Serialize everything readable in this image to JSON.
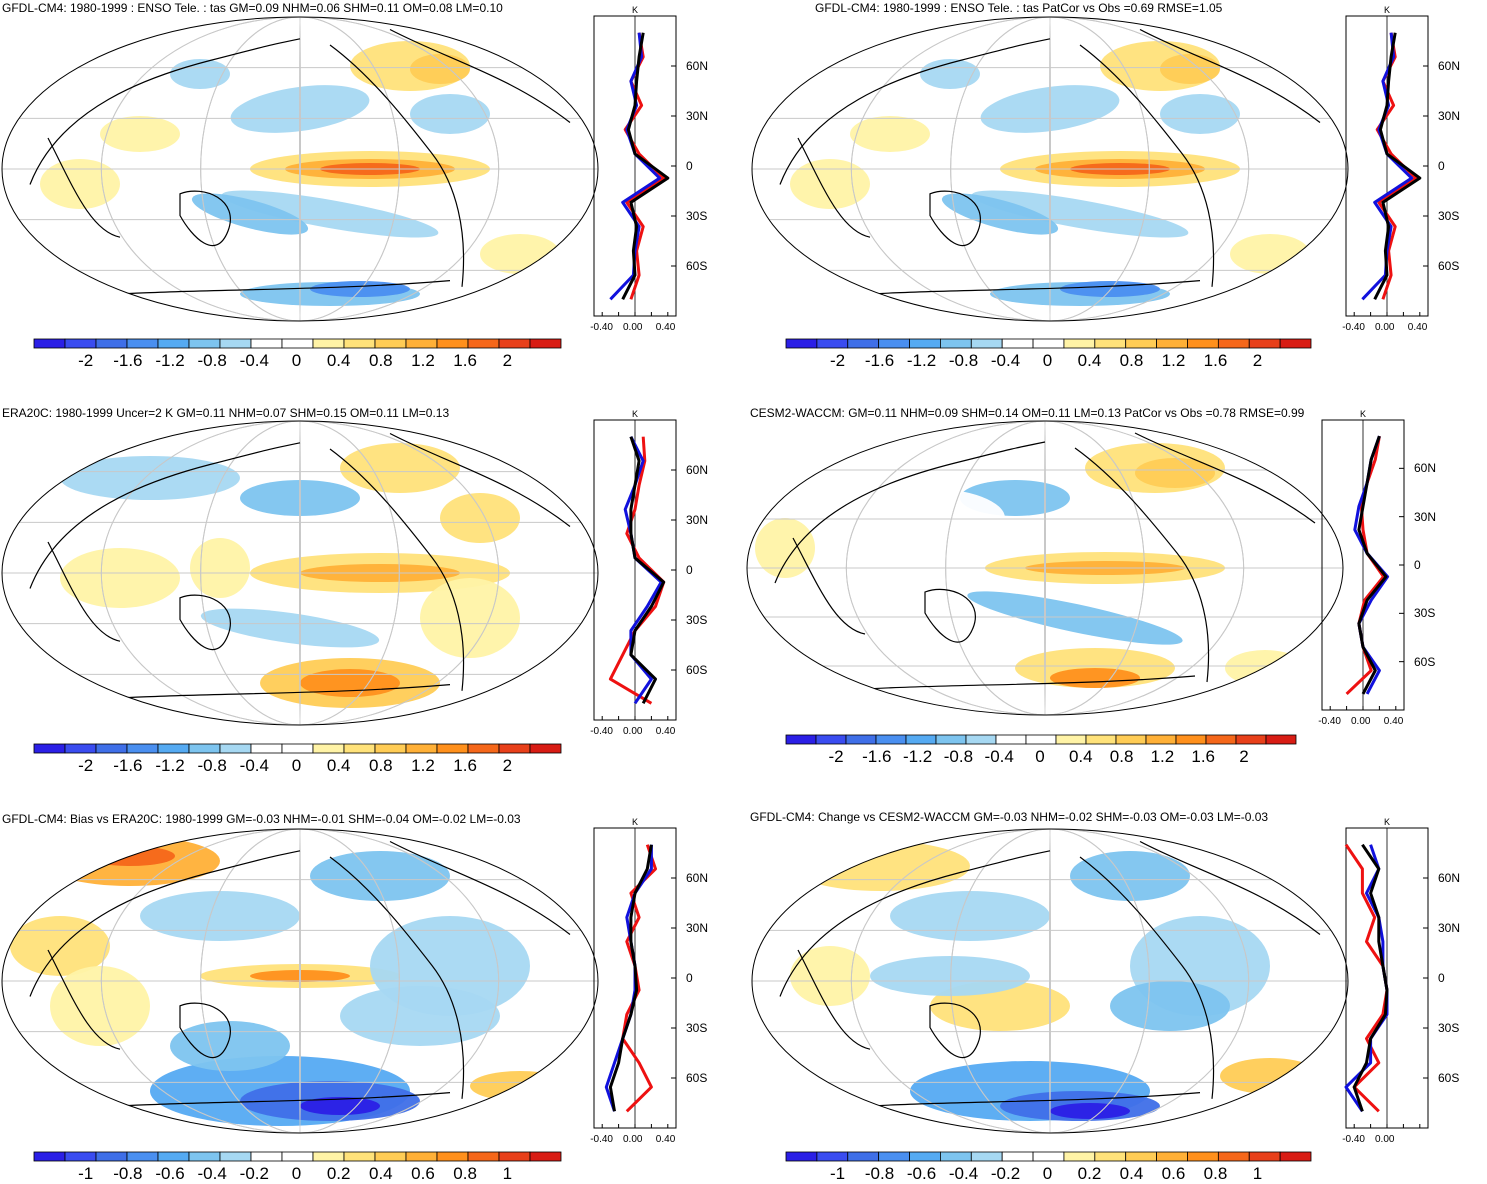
{
  "colors": {
    "neg": [
      "#2b1fe6",
      "#3a4cf0",
      "#3f6fe8",
      "#4a8ff0",
      "#55aaf2",
      "#7dc4ef",
      "#a6d8f2"
    ],
    "pos": [
      "#fff3a6",
      "#ffe27a",
      "#ffcc55",
      "#ffb037",
      "#ff901c",
      "#f5671a",
      "#e8401a",
      "#d81c14"
    ],
    "land": "#000000",
    "grid": "#c8c8c8",
    "line_red": "#ee1111",
    "line_blue": "#1111dd",
    "line_black": "#000000"
  },
  "zonal": {
    "unit": "K",
    "lat_labels": [
      "60N",
      "30N",
      "0",
      "30S",
      "60S"
    ],
    "x_labels_3": [
      "-0.40",
      "0.00",
      "0.40"
    ],
    "x_labels_2": [
      "-0.40",
      "0.00"
    ]
  },
  "colorbar_main": [
    "-2",
    "-1.6",
    "-1.2",
    "-0.8",
    "-0.4",
    "0",
    "0.4",
    "0.8",
    "1.2",
    "1.6",
    "2"
  ],
  "colorbar_bias": [
    "-1",
    "-0.8",
    "-0.6",
    "-0.4",
    "-0.2",
    "0",
    "0.2",
    "0.4",
    "0.6",
    "0.8",
    "1"
  ],
  "panels": [
    {
      "title": "GFDL-CM4: 1980-1999 : ENSO Tele. : tas GM=0.09 NHM=0.06 SHM=0.11 OM=0.08 LM=0.10"
    },
    {
      "title": "GFDL-CM4: 1980-1999 : ENSO Tele. : tas PatCor vs Obs =0.69 RMSE=1.05"
    },
    {
      "title": "ERA20C: 1980-1999 Uncer=2 K GM=0.11 NHM=0.07 SHM=0.15 OM=0.11 LM=0.13"
    },
    {
      "title": "CESM2-WACCM: GM=0.11 NHM=0.09 SHM=0.14 OM=0.11 LM=0.13 PatCor vs Obs =0.78 RMSE=0.99"
    },
    {
      "title": "GFDL-CM4: Bias vs ERA20C: 1980-1999 GM=-0.03 NHM=-0.01 SHM=-0.04 OM=-0.02 LM=-0.03"
    },
    {
      "title": "GFDL-CM4: Change vs CESM2-WACCM GM=-0.03 NHM=-0.02 SHM=-0.03 OM=-0.03 LM=-0.03"
    }
  ]
}
